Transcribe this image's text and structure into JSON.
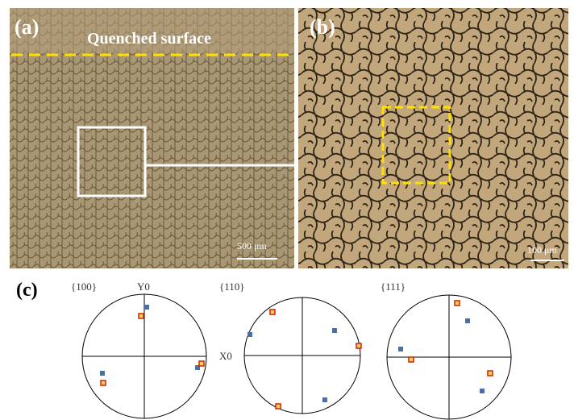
{
  "panel_a": {
    "label": "(a)",
    "annotation": "Quenched surface",
    "scale_bar": "500 μm"
  },
  "panel_b": {
    "label": "(b)",
    "scale_bar": "100 μm"
  },
  "panel_c": {
    "label": "(c)",
    "pole_figures": [
      {
        "title": "{100}"
      },
      {
        "title": "{110}"
      },
      {
        "title": "{111}"
      }
    ],
    "y_axis": "Y0",
    "x_axis": "X0"
  }
}
